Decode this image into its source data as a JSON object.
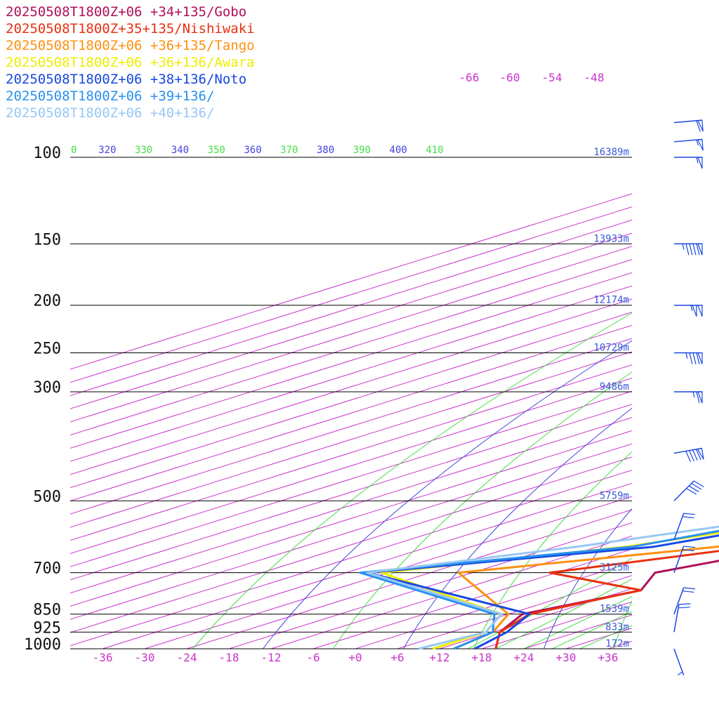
{
  "chart_data": {
    "type": "line",
    "title": "",
    "pressure_axis": {
      "labels": [
        "100",
        "150",
        "200",
        "250",
        "300",
        "500",
        "700",
        "850",
        "925",
        "1000"
      ],
      "values": [
        100,
        150,
        200,
        250,
        300,
        500,
        700,
        850,
        925,
        1000
      ],
      "ylim": [
        1000,
        100
      ],
      "scale": "log"
    },
    "height_labels": [
      {
        "p": 100,
        "text": "16389m"
      },
      {
        "p": 150,
        "text": "13933m"
      },
      {
        "p": 200,
        "text": "12174m"
      },
      {
        "p": 250,
        "text": "10729m"
      },
      {
        "p": 300,
        "text": "9486m"
      },
      {
        "p": 500,
        "text": "5759m"
      },
      {
        "p": 700,
        "text": "3125m"
      },
      {
        "p": 850,
        "text": "1539m"
      },
      {
        "p": 925,
        "text": "833m"
      },
      {
        "p": 1000,
        "text": "172m"
      }
    ],
    "temperature_axis": {
      "labels": [
        "-36",
        "-30",
        "-24",
        "-18",
        "-12",
        "-6",
        "+0",
        "+6",
        "+12",
        "+18",
        "+24",
        "+30",
        "+36"
      ],
      "values": [
        -36,
        -30,
        -24,
        -18,
        -12,
        -6,
        0,
        6,
        12,
        18,
        24,
        30,
        36
      ],
      "unit": "°C"
    },
    "isotherm_top_labels": [
      "-66",
      "-60",
      "-54",
      "-48"
    ],
    "theta_labels": [
      {
        "text": "0",
        "color": "#44dd44"
      },
      {
        "text": "320",
        "color": "#4444dd"
      },
      {
        "text": "330",
        "color": "#44dd44"
      },
      {
        "text": "340",
        "color": "#4444dd"
      },
      {
        "text": "350",
        "color": "#44dd44"
      },
      {
        "text": "360",
        "color": "#4444dd"
      },
      {
        "text": "370",
        "color": "#44dd44"
      },
      {
        "text": "380",
        "color": "#4444dd"
      },
      {
        "text": "390",
        "color": "#44dd44"
      },
      {
        "text": "400",
        "color": "#4444dd"
      },
      {
        "text": "410",
        "color": "#44dd44"
      }
    ],
    "background_lines": {
      "isotherms": "#cc33cc",
      "dry_adiabats": "#4444dd",
      "moist_adiabats": "#44dd44",
      "isobars": "#000000"
    },
    "series": [
      {
        "name": "20250508T1800Z+06 +34+135/Gobo",
        "color": "#b0105a",
        "points": [
          [
            20,
            1000
          ],
          [
            13,
            925
          ],
          [
            8,
            850
          ],
          [
            14,
            760
          ],
          [
            8,
            700
          ],
          [
            15,
            630
          ],
          [
            17,
            610
          ],
          [
            16,
            500
          ],
          [
            14,
            420
          ],
          [
            6,
            300
          ],
          [
            -34,
            200
          ],
          [
            -45,
            170
          ],
          [
            -36,
            150
          ],
          [
            -17,
            100
          ],
          [
            -16,
            93
          ],
          [
            -6,
            80
          ]
        ]
      },
      {
        "name": "20250508T1800Z+35+135/Nishiwaki",
        "color": "#e83010",
        "points": [
          [
            20,
            1000
          ],
          [
            13,
            925
          ],
          [
            9,
            850
          ],
          [
            14,
            760
          ],
          [
            -7,
            700
          ],
          [
            10,
            620
          ],
          [
            14,
            600
          ],
          [
            14,
            500
          ],
          [
            13,
            420
          ],
          [
            5,
            300
          ],
          [
            -34,
            200
          ],
          [
            -45,
            170
          ],
          [
            -37,
            150
          ],
          [
            -19,
            104
          ],
          [
            -17,
            101
          ],
          [
            -18,
            93
          ]
        ]
      },
      {
        "name": "20250508T1800Z+06 +36+135/Tango",
        "color": "#ff9010",
        "points": [
          [
            14,
            1000
          ],
          [
            12,
            925
          ],
          [
            6,
            850
          ],
          [
            -20,
            700
          ],
          [
            5,
            620
          ],
          [
            10,
            600
          ],
          [
            10,
            500
          ],
          [
            12,
            420
          ],
          [
            4,
            300
          ],
          [
            -34,
            200
          ],
          [
            -45,
            170
          ],
          [
            -38,
            150
          ],
          [
            -20,
            105
          ],
          [
            -17,
            99
          ],
          [
            -15,
            93
          ]
        ]
      },
      {
        "name": "20250508T1800Z+06 +36+136/Awara",
        "color": "#eeee00",
        "points": [
          [
            11,
            1000
          ],
          [
            11,
            925
          ],
          [
            5,
            850
          ],
          [
            -31,
            700
          ],
          [
            -8,
            620
          ],
          [
            3,
            560
          ],
          [
            6,
            500
          ],
          [
            7,
            430
          ],
          [
            1,
            300
          ],
          [
            -34,
            200
          ],
          [
            -46,
            170
          ],
          [
            -38,
            150
          ],
          [
            -21,
            106
          ],
          [
            -17,
            99
          ],
          [
            -14,
            93
          ]
        ]
      },
      {
        "name": "20250508T1800Z+06 +38+136/Noto",
        "color": "#1848e0",
        "points": [
          [
            17,
            1000
          ],
          [
            14,
            925
          ],
          [
            9,
            850
          ],
          [
            -33,
            700
          ],
          [
            -4,
            620
          ],
          [
            4,
            560
          ],
          [
            6,
            500
          ],
          [
            6,
            430
          ],
          [
            -1,
            300
          ],
          [
            -36,
            200
          ],
          [
            -46,
            170
          ],
          [
            -39,
            150
          ],
          [
            -23,
            108
          ],
          [
            -14,
            98
          ],
          [
            -13,
            93
          ]
        ]
      },
      {
        "name": "20250508T1800Z+06 +39+136/",
        "color": "#2890f0",
        "points": [
          [
            14,
            1000
          ],
          [
            12,
            925
          ],
          [
            4,
            850
          ],
          [
            -34,
            700
          ],
          [
            -7,
            620
          ],
          [
            0,
            560
          ],
          [
            2,
            500
          ],
          [
            3,
            430
          ],
          [
            0,
            300
          ],
          [
            -38,
            200
          ],
          [
            -47,
            170
          ],
          [
            -40,
            150
          ],
          [
            -24,
            110
          ],
          [
            -15,
            98
          ],
          [
            -12,
            93
          ]
        ]
      },
      {
        "name": "20250508T1800Z+06 +40+136/",
        "color": "#98c8f4",
        "points": [
          [
            9,
            1000
          ],
          [
            11,
            925
          ],
          [
            5,
            850
          ],
          [
            -33,
            700
          ],
          [
            -15,
            620
          ],
          [
            -3,
            560
          ],
          [
            0,
            500
          ],
          [
            0,
            430
          ],
          [
            -3,
            300
          ],
          [
            -41,
            200
          ],
          [
            -48,
            170
          ],
          [
            -42,
            150
          ],
          [
            -21,
            108
          ],
          [
            -16,
            98
          ],
          [
            -11,
            93
          ]
        ]
      }
    ],
    "wind_barbs": [
      {
        "p": 85,
        "dir": 265,
        "knots": 60
      },
      {
        "p": 93,
        "dir": 265,
        "knots": 55
      },
      {
        "p": 100,
        "dir": 270,
        "knots": 55
      },
      {
        "p": 150,
        "dir": 270,
        "knots": 95
      },
      {
        "p": 200,
        "dir": 270,
        "knots": 105
      },
      {
        "p": 250,
        "dir": 270,
        "knots": 85
      },
      {
        "p": 300,
        "dir": 270,
        "knots": 65
      },
      {
        "p": 400,
        "dir": 260,
        "knots": 90
      },
      {
        "p": 500,
        "dir": 225,
        "knots": 40
      },
      {
        "p": 600,
        "dir": 200,
        "knots": 20
      },
      {
        "p": 700,
        "dir": 200,
        "knots": 20
      },
      {
        "p": 850,
        "dir": 200,
        "knots": 20
      },
      {
        "p": 925,
        "dir": 190,
        "knots": 20
      },
      {
        "p": 1000,
        "dir": 340,
        "knots": 5
      }
    ]
  }
}
